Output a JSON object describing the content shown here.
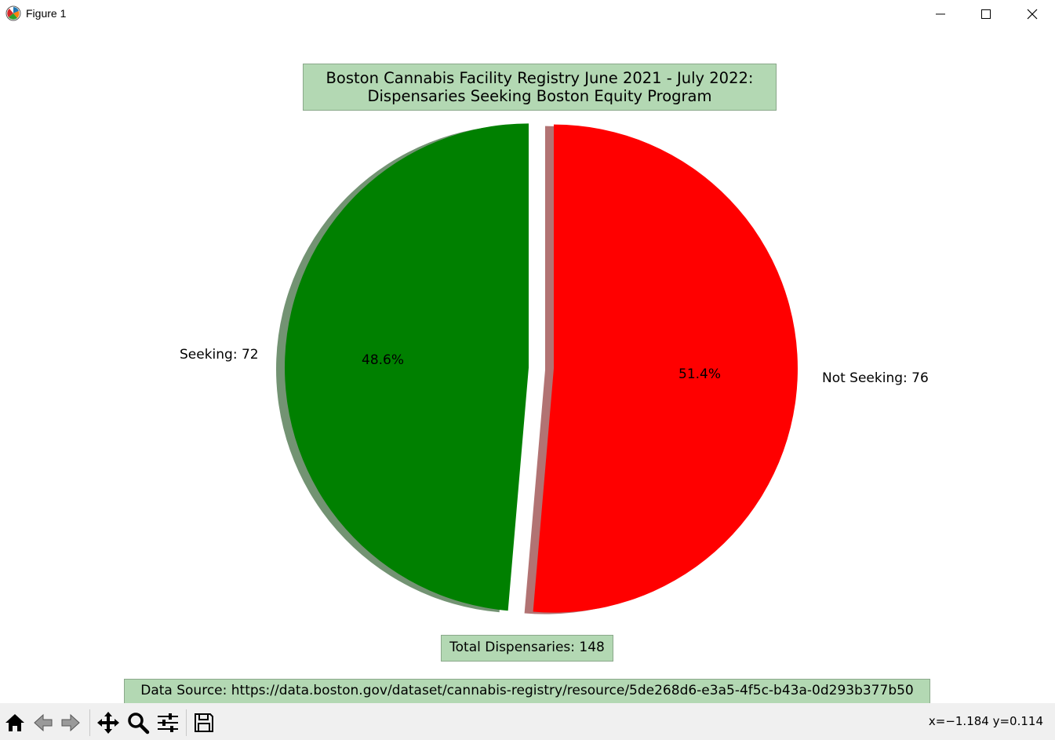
{
  "window": {
    "title": "Figure 1",
    "icons": {
      "app": "matplotlib-icon",
      "minimize": "minimize-icon",
      "maximize": "maximize-icon",
      "close": "close-icon"
    }
  },
  "chart_data": {
    "type": "pie",
    "title_lines": [
      "Boston Cannabis Facility Registry June 2021 - July 2022:",
      "Dispensaries Seeking Boston Equity Program"
    ],
    "slices": [
      {
        "label": "Seeking: 72",
        "value": 72,
        "pct_label": "48.6%",
        "color": "#008000"
      },
      {
        "label": "Not Seeking: 76",
        "value": 76,
        "pct_label": "51.4%",
        "color": "#ff0000"
      }
    ],
    "total_label": "Total Dispensaries: 148",
    "source_label": "Data Source: https://data.boston.gov/dataset/cannabis-registry/resource/5de268d6-e3a5-4f5c-b43a-0d293b377b50",
    "shadow": true,
    "exploded": true,
    "start_angle_deg": 90,
    "box_color": "#b3d8b3"
  },
  "toolbar": {
    "buttons": [
      {
        "name": "home-button",
        "icon": "home-icon"
      },
      {
        "name": "back-button",
        "icon": "arrow-left-icon"
      },
      {
        "name": "forward-button",
        "icon": "arrow-right-icon"
      },
      {
        "name": "pan-button",
        "icon": "move-icon"
      },
      {
        "name": "zoom-button",
        "icon": "magnifier-icon"
      },
      {
        "name": "configure-subplots-button",
        "icon": "sliders-icon"
      },
      {
        "name": "save-button",
        "icon": "floppy-disk-icon"
      }
    ],
    "coords": "x=−1.184 y=0.114"
  }
}
